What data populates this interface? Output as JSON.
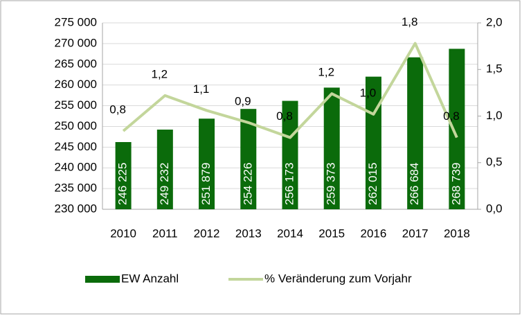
{
  "chart_data": {
    "type": "bar_line",
    "categories": [
      "2010",
      "2011",
      "2012",
      "2013",
      "2014",
      "2015",
      "2016",
      "2017",
      "2018"
    ],
    "series": [
      {
        "name": "EW Anzahl",
        "type": "bar",
        "color": "#0b6b0b",
        "values": [
          246225,
          249232,
          251879,
          254226,
          256173,
          259373,
          262015,
          266684,
          268739
        ],
        "value_labels": [
          "246 225",
          "249 232",
          "251 879",
          "254 226",
          "256 173",
          "259 373",
          "262 015",
          "266 684",
          "268 739"
        ]
      },
      {
        "name": "% Veränderung zum Vorjahr",
        "type": "line",
        "axis": "y2",
        "color": "#c3d69b",
        "values": [
          0.84,
          1.22,
          1.06,
          0.93,
          0.77,
          1.24,
          1.02,
          1.78,
          0.77
        ],
        "value_labels": [
          "0,8",
          "1,2",
          "1,1",
          "0,9",
          "0,8",
          "1,2",
          "1,0",
          "1,8",
          "0,8"
        ]
      }
    ],
    "ylim": [
      230000,
      275000
    ],
    "yticks": [
      {
        "value": 230000,
        "label": "230 000"
      },
      {
        "value": 235000,
        "label": "235 000"
      },
      {
        "value": 240000,
        "label": "240 000"
      },
      {
        "value": 245000,
        "label": "245 000"
      },
      {
        "value": 250000,
        "label": "250 000"
      },
      {
        "value": 255000,
        "label": "255 000"
      },
      {
        "value": 260000,
        "label": "260 000"
      },
      {
        "value": 265000,
        "label": "265 000"
      },
      {
        "value": 270000,
        "label": "270 000"
      },
      {
        "value": 275000,
        "label": "275 000"
      }
    ],
    "y2lim": [
      0,
      2
    ],
    "y2ticks": [
      {
        "value": 0,
        "label": "0,0"
      },
      {
        "value": 0.5,
        "label": "0,5"
      },
      {
        "value": 1,
        "label": "1,0"
      },
      {
        "value": 1.5,
        "label": "1,5"
      },
      {
        "value": 2,
        "label": "2,0"
      }
    ],
    "grid": true,
    "legend": "bottom"
  }
}
